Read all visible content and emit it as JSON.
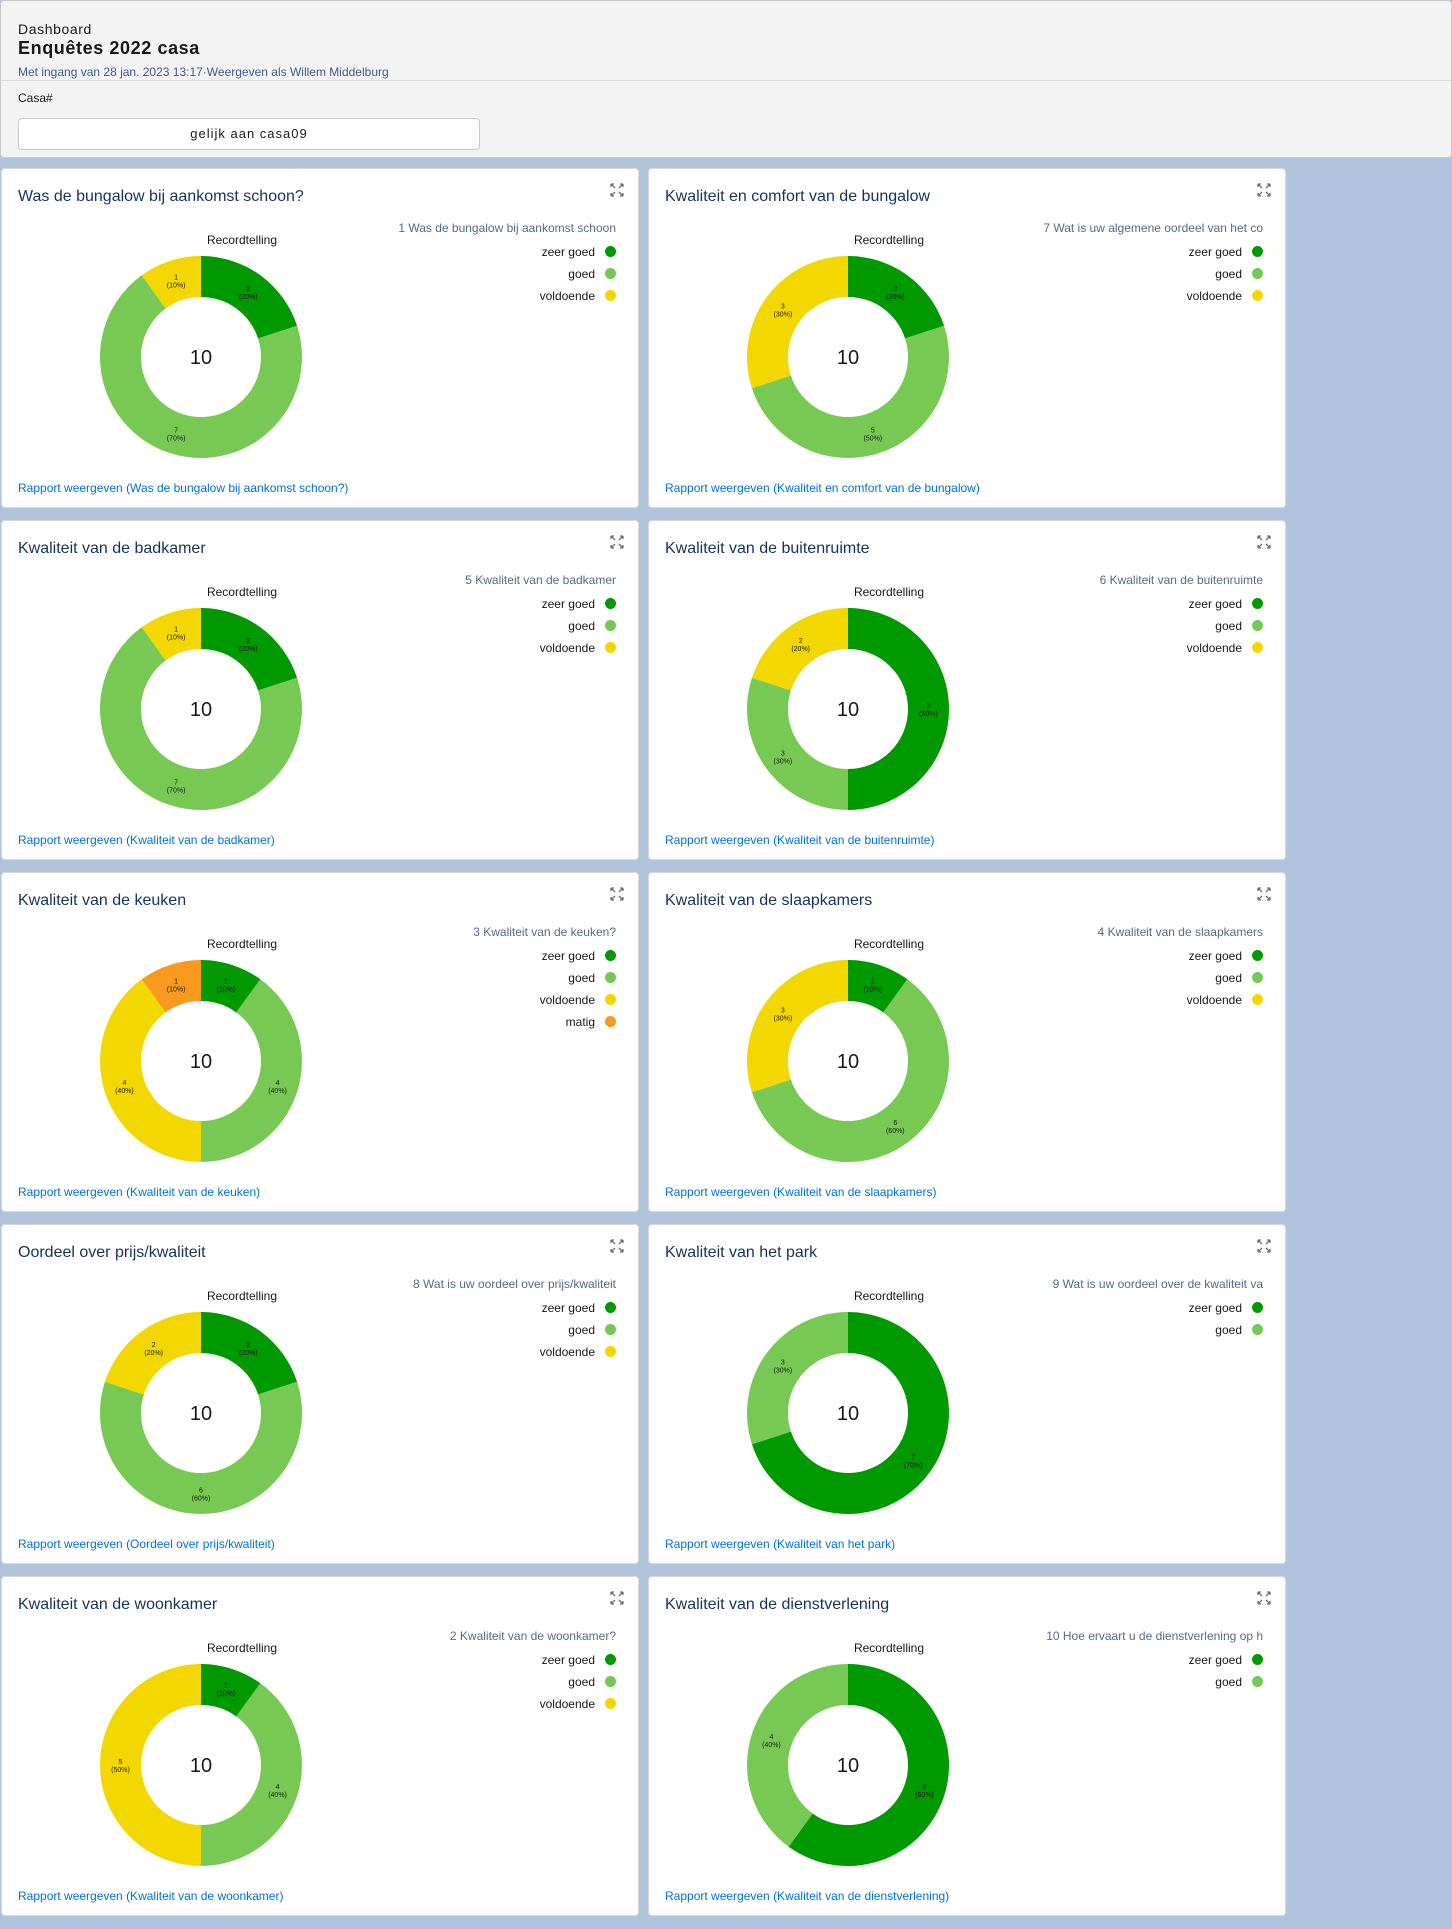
{
  "header": {
    "eyebrow": "Dashboard",
    "title": "Enquêtes 2022 casa",
    "subline": "Met ingang van 28 jan. 2023 13:17·Weergeven als Willem Middelburg"
  },
  "filter": {
    "label": "Casa#",
    "value": "gelijk aan casa09"
  },
  "colors": {
    "zeer goed": "#009900",
    "goed": "#78c953",
    "voldoende": "#f2d800",
    "matig": "#f79a1e"
  },
  "widgets": [
    {
      "title": "Was de bungalow bij aankomst schoon?",
      "measure": "Recordtelling",
      "legend_title": "1 Was de bungalow bij aankomst schoon",
      "total": "10",
      "report_link": "Rapport weergeven (Was de bungalow bij aankomst schoon?)",
      "chart_data": {
        "type": "pie",
        "segments": [
          {
            "label": "zeer goed",
            "value": 2,
            "percent": "20%"
          },
          {
            "label": "goed",
            "value": 7,
            "percent": "70%"
          },
          {
            "label": "voldoende",
            "value": 1,
            "percent": "10%"
          }
        ]
      }
    },
    {
      "title": "Kwaliteit en comfort van de bungalow",
      "measure": "Recordtelling",
      "legend_title": "7 Wat is uw  algemene oordeel van het co",
      "total": "10",
      "report_link": "Rapport weergeven (Kwaliteit en comfort van de bungalow)",
      "chart_data": {
        "type": "pie",
        "segments": [
          {
            "label": "zeer goed",
            "value": 2,
            "percent": "20%"
          },
          {
            "label": "goed",
            "value": 5,
            "percent": "50%"
          },
          {
            "label": "voldoende",
            "value": 3,
            "percent": "30%"
          }
        ]
      }
    },
    {
      "title": "Kwaliteit van de badkamer",
      "measure": "Recordtelling",
      "legend_title": "5 Kwaliteit van de badkamer",
      "total": "10",
      "report_link": "Rapport weergeven (Kwaliteit van de badkamer)",
      "chart_data": {
        "type": "pie",
        "segments": [
          {
            "label": "zeer goed",
            "value": 2,
            "percent": "20%"
          },
          {
            "label": "goed",
            "value": 7,
            "percent": "70%"
          },
          {
            "label": "voldoende",
            "value": 1,
            "percent": "10%"
          }
        ]
      }
    },
    {
      "title": "Kwaliteit van de buitenruimte",
      "measure": "Recordtelling",
      "legend_title": "6 Kwaliteit van de buitenruimte",
      "total": "10",
      "report_link": "Rapport weergeven (Kwaliteit van de buitenruimte)",
      "chart_data": {
        "type": "pie",
        "segments": [
          {
            "label": "zeer goed",
            "value": 5,
            "percent": "50%"
          },
          {
            "label": "goed",
            "value": 3,
            "percent": "30%"
          },
          {
            "label": "voldoende",
            "value": 2,
            "percent": "20%"
          }
        ]
      }
    },
    {
      "title": "Kwaliteit van de keuken",
      "measure": "Recordtelling",
      "legend_title": "3 Kwaliteit van de keuken?",
      "total": "10",
      "report_link": "Rapport weergeven (Kwaliteit van de keuken)",
      "chart_data": {
        "type": "pie",
        "segments": [
          {
            "label": "zeer goed",
            "value": 1,
            "percent": "10%"
          },
          {
            "label": "goed",
            "value": 4,
            "percent": "40%"
          },
          {
            "label": "voldoende",
            "value": 4,
            "percent": "40%"
          },
          {
            "label": "matig",
            "value": 1,
            "percent": "10%"
          }
        ]
      }
    },
    {
      "title": "Kwaliteit van de slaapkamers",
      "measure": "Recordtelling",
      "legend_title": "4 Kwaliteit van de slaapkamers",
      "total": "10",
      "report_link": "Rapport weergeven (Kwaliteit van de slaapkamers)",
      "chart_data": {
        "type": "pie",
        "segments": [
          {
            "label": "zeer goed",
            "value": 1,
            "percent": "10%"
          },
          {
            "label": "goed",
            "value": 6,
            "percent": "60%"
          },
          {
            "label": "voldoende",
            "value": 3,
            "percent": "30%"
          }
        ]
      }
    },
    {
      "title": "Oordeel over prijs/kwaliteit",
      "measure": "Recordtelling",
      "legend_title": "8 Wat is uw oordeel over prijs/kwaliteit",
      "total": "10",
      "report_link": "Rapport weergeven (Oordeel over prijs/kwaliteit)",
      "chart_data": {
        "type": "pie",
        "segments": [
          {
            "label": "zeer goed",
            "value": 2,
            "percent": "20%"
          },
          {
            "label": "goed",
            "value": 6,
            "percent": "60%"
          },
          {
            "label": "voldoende",
            "value": 2,
            "percent": "20%"
          }
        ]
      }
    },
    {
      "title": "Kwaliteit van het park",
      "measure": "Recordtelling",
      "legend_title": "9 Wat is uw oordeel over de kwaliteit va",
      "total": "10",
      "report_link": "Rapport weergeven (Kwaliteit van het park)",
      "chart_data": {
        "type": "pie",
        "segments": [
          {
            "label": "zeer goed",
            "value": 7,
            "percent": "70%"
          },
          {
            "label": "goed",
            "value": 3,
            "percent": "30%"
          }
        ]
      }
    },
    {
      "title": "Kwaliteit van de woonkamer",
      "measure": "Recordtelling",
      "legend_title": "2 Kwaliteit van de woonkamer?",
      "total": "10",
      "report_link": "Rapport weergeven (Kwaliteit van de woonkamer)",
      "chart_data": {
        "type": "pie",
        "segments": [
          {
            "label": "zeer goed",
            "value": 1,
            "percent": "10%"
          },
          {
            "label": "goed",
            "value": 4,
            "percent": "40%"
          },
          {
            "label": "voldoende",
            "value": 5,
            "percent": "50%"
          }
        ]
      }
    },
    {
      "title": "Kwaliteit van de dienstverlening",
      "measure": "Recordtelling",
      "legend_title": "10 Hoe ervaart u de dienstverlening op h",
      "total": "10",
      "report_link": "Rapport weergeven (Kwaliteit van de dienstverlening)",
      "chart_data": {
        "type": "pie",
        "segments": [
          {
            "label": "zeer goed",
            "value": 6,
            "percent": "60%"
          },
          {
            "label": "goed",
            "value": 4,
            "percent": "40%"
          }
        ]
      }
    }
  ]
}
